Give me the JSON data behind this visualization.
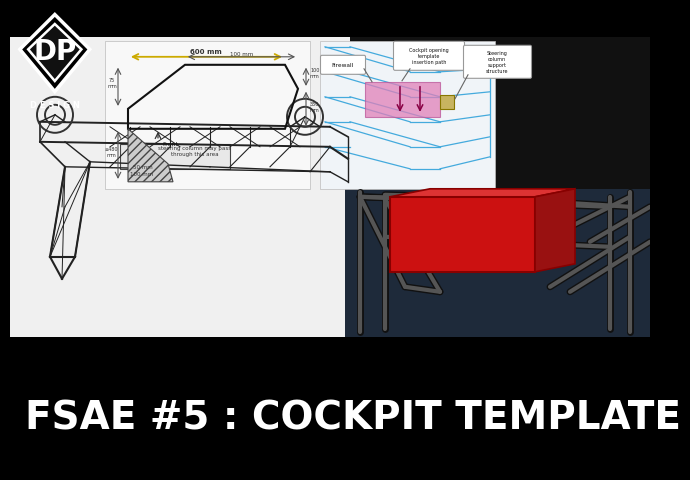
{
  "bg_color": "#000000",
  "main_bg_color": "#1a1a1a",
  "title_text": "FSAE #5 : COCKPIT TEMPLATE",
  "title_color": "#ffffff",
  "title_bg_color": "#000000",
  "title_fontsize": 28,
  "title_font_weight": "bold",
  "logo_color": "#ffffff",
  "content_bg": "#d0d0d0",
  "red_box_color": "#cc1111",
  "chassis_color": "#333333",
  "yellow_dim_color": "#ddaa00",
  "pink_region_color": "#e080b0",
  "light_blue_line": "#44aadd",
  "callout_bg": "#ffffff",
  "callout_border": "#888888"
}
